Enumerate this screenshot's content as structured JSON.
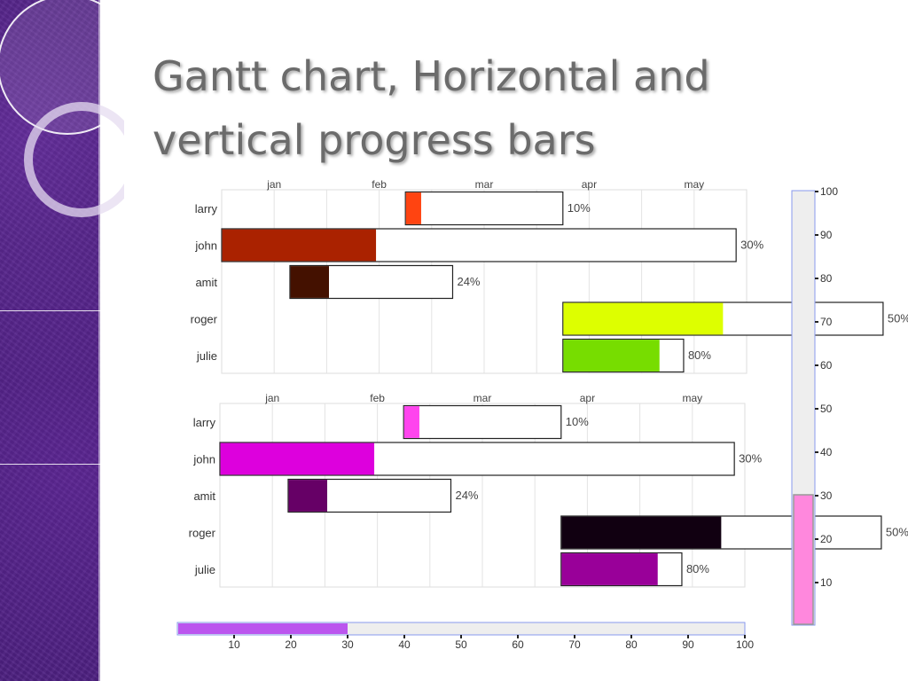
{
  "slide": {
    "title_line1": "Gantt chart, Horizontal and",
    "title_line2": "vertical progress bars"
  },
  "chart_data": [
    {
      "type": "gantt",
      "months": [
        "jan",
        "feb",
        "mar",
        "apr",
        "may"
      ],
      "x_range": [
        0,
        10
      ],
      "tasks": [
        {
          "name": "larry",
          "start": 3.5,
          "end": 6.5,
          "progress": "10%",
          "progress_value": 0.1,
          "color": "#ff4411"
        },
        {
          "name": "john",
          "start": 0,
          "end": 9.8,
          "progress": "30%",
          "progress_value": 0.3,
          "color": "#aa2200"
        },
        {
          "name": "amit",
          "start": 1.3,
          "end": 4.4,
          "progress": "24%",
          "progress_value": 0.24,
          "color": "#441100"
        },
        {
          "name": "roger",
          "start": 6.5,
          "end": 12.6,
          "progress": "50%",
          "progress_value": 0.5,
          "color": "#ddff00"
        },
        {
          "name": "julie",
          "start": 6.5,
          "end": 8.8,
          "progress": "80%",
          "progress_value": 0.8,
          "color": "#77dd00"
        }
      ]
    },
    {
      "type": "gantt",
      "months": [
        "jan",
        "feb",
        "mar",
        "apr",
        "may"
      ],
      "x_range": [
        0,
        10
      ],
      "tasks": [
        {
          "name": "larry",
          "start": 3.5,
          "end": 6.5,
          "progress": "10%",
          "progress_value": 0.1,
          "color": "#ff44ee"
        },
        {
          "name": "john",
          "start": 0,
          "end": 9.8,
          "progress": "30%",
          "progress_value": 0.3,
          "color": "#dd00dd"
        },
        {
          "name": "amit",
          "start": 1.3,
          "end": 4.4,
          "progress": "24%",
          "progress_value": 0.24,
          "color": "#660066"
        },
        {
          "name": "roger",
          "start": 6.5,
          "end": 12.6,
          "progress": "50%",
          "progress_value": 0.5,
          "color": "#110011"
        },
        {
          "name": "julie",
          "start": 6.5,
          "end": 8.8,
          "progress": "80%",
          "progress_value": 0.8,
          "color": "#990099"
        }
      ]
    },
    {
      "type": "progress-horizontal",
      "value": 30,
      "range": [
        0,
        100
      ],
      "ticks": [
        10,
        20,
        30,
        40,
        50,
        60,
        70,
        80,
        90,
        100
      ],
      "color": "#bb55ee"
    },
    {
      "type": "progress-vertical",
      "value": 30,
      "range": [
        0,
        100
      ],
      "ticks": [
        10,
        20,
        30,
        40,
        50,
        60,
        70,
        80,
        90,
        100
      ],
      "color": "#ff88dd"
    }
  ]
}
